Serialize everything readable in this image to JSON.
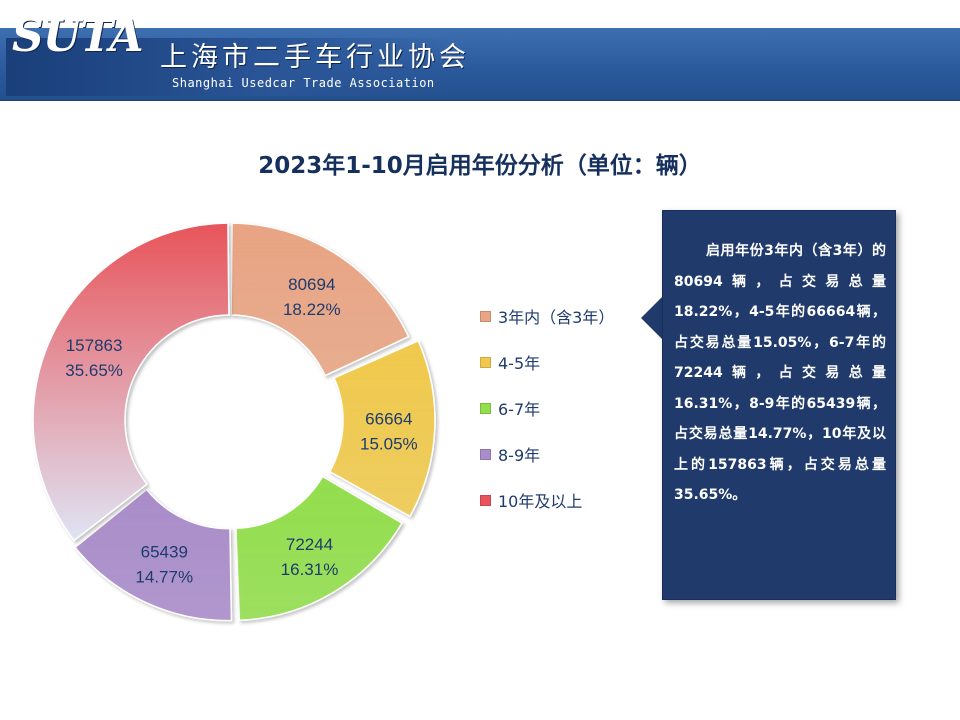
{
  "header": {
    "logo_mark": "SUTA",
    "org_name_cn": "上海市二手车行业协会",
    "org_name_en": "Shanghai Usedcar Trade Association"
  },
  "chart_data": {
    "type": "pie",
    "title": "2023年1-10月启用年份分析（单位：辆）",
    "donut": true,
    "legend_position": "right",
    "slices": [
      {
        "label": "3年内（含3年）",
        "value": 80694,
        "percent": "18.22%",
        "color": "#e8a483"
      },
      {
        "label": "4-5年",
        "value": 66664,
        "percent": "15.05%",
        "color": "#f0c94c"
      },
      {
        "label": "6-7年",
        "value": 72244,
        "percent": "16.31%",
        "color": "#92de4c"
      },
      {
        "label": "8-9年",
        "value": 65439,
        "percent": "14.77%",
        "color": "#a98cc9"
      },
      {
        "label": "10年及以上",
        "value": 157863,
        "percent": "35.65%",
        "color": "#e8545a"
      }
    ]
  },
  "callout": {
    "text": "启用年份3年内（含3年）的80694辆，占交易总量18.22%，4-5年的66664辆，占交易总量15.05%，6-7年的72244辆，占交易总量16.31%，8-9年的65439辆，占交易总量14.77%，10年及以上的157863辆，占交易总量35.65%。"
  }
}
